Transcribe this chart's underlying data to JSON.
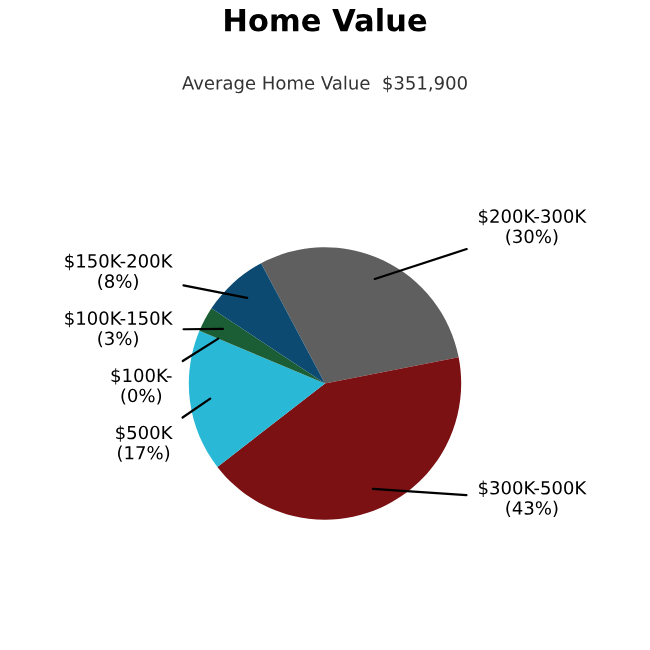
{
  "chart_data": {
    "type": "pie",
    "title": "Home Value",
    "subtitle": "Average Home Value  $351,900",
    "categories": [
      "$200K-300K",
      "$300K-500K",
      "$500K",
      "$100K-",
      "$100K-150K",
      "$150K-200K"
    ],
    "values": [
      30,
      43,
      17,
      0,
      3,
      8
    ],
    "colors": [
      "#5f5f5f",
      "#7b1113",
      "#29b9d6",
      "#2a7fa0",
      "#1b5e35",
      "#0d4a72"
    ],
    "value_labels": [
      "(30%)",
      "(43%)",
      "(17%)",
      "(0%)",
      "(3%)",
      "(8%)"
    ],
    "legend": false
  }
}
